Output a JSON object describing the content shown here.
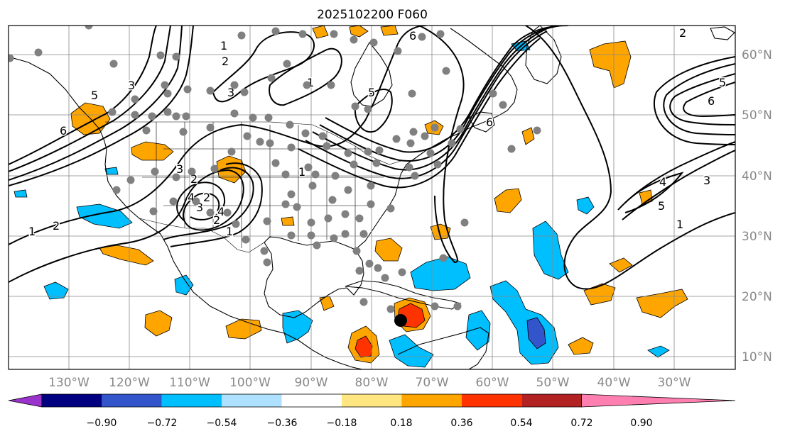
{
  "title": "2025102200 F060",
  "latitude_labels": [
    "60°N",
    "50°N",
    "40°N",
    "30°N",
    "20°N",
    "10°N"
  ],
  "longitude_labels": [
    "130°W",
    "120°W",
    "110°W",
    "100°W",
    "90°W",
    "80°W",
    "70°W",
    "60°W",
    "50°W",
    "40°W",
    "30°W"
  ],
  "colorbar": {
    "tick_labels": [
      "−0.90",
      "−0.72",
      "−0.54",
      "−0.36",
      "−0.18",
      "0.18",
      "0.36",
      "0.54",
      "0.72",
      "0.90"
    ],
    "colors": [
      "#9933cc",
      "#000080",
      "#3355cc",
      "#00bfff",
      "#aee0ff",
      "#ffffff",
      "#ffe680",
      "#ffa500",
      "#ff3300",
      "#b22222",
      "#ff80b0"
    ]
  },
  "contour_labels": [
    "6",
    "5",
    "3",
    "2",
    "1",
    "4",
    "3",
    "2",
    "1",
    "5",
    "6",
    "1",
    "2",
    "4",
    "3",
    "2",
    "1",
    "1",
    "6",
    "5",
    "4",
    "3",
    "2",
    "1",
    "2",
    "3",
    "6",
    "5"
  ],
  "colors": {
    "land_outline": "#000000",
    "grid": "#888888",
    "station_dots": "#808080",
    "contours": "#000000",
    "positive_fill": "#ffa500",
    "negative_fill": "#00bfff"
  }
}
